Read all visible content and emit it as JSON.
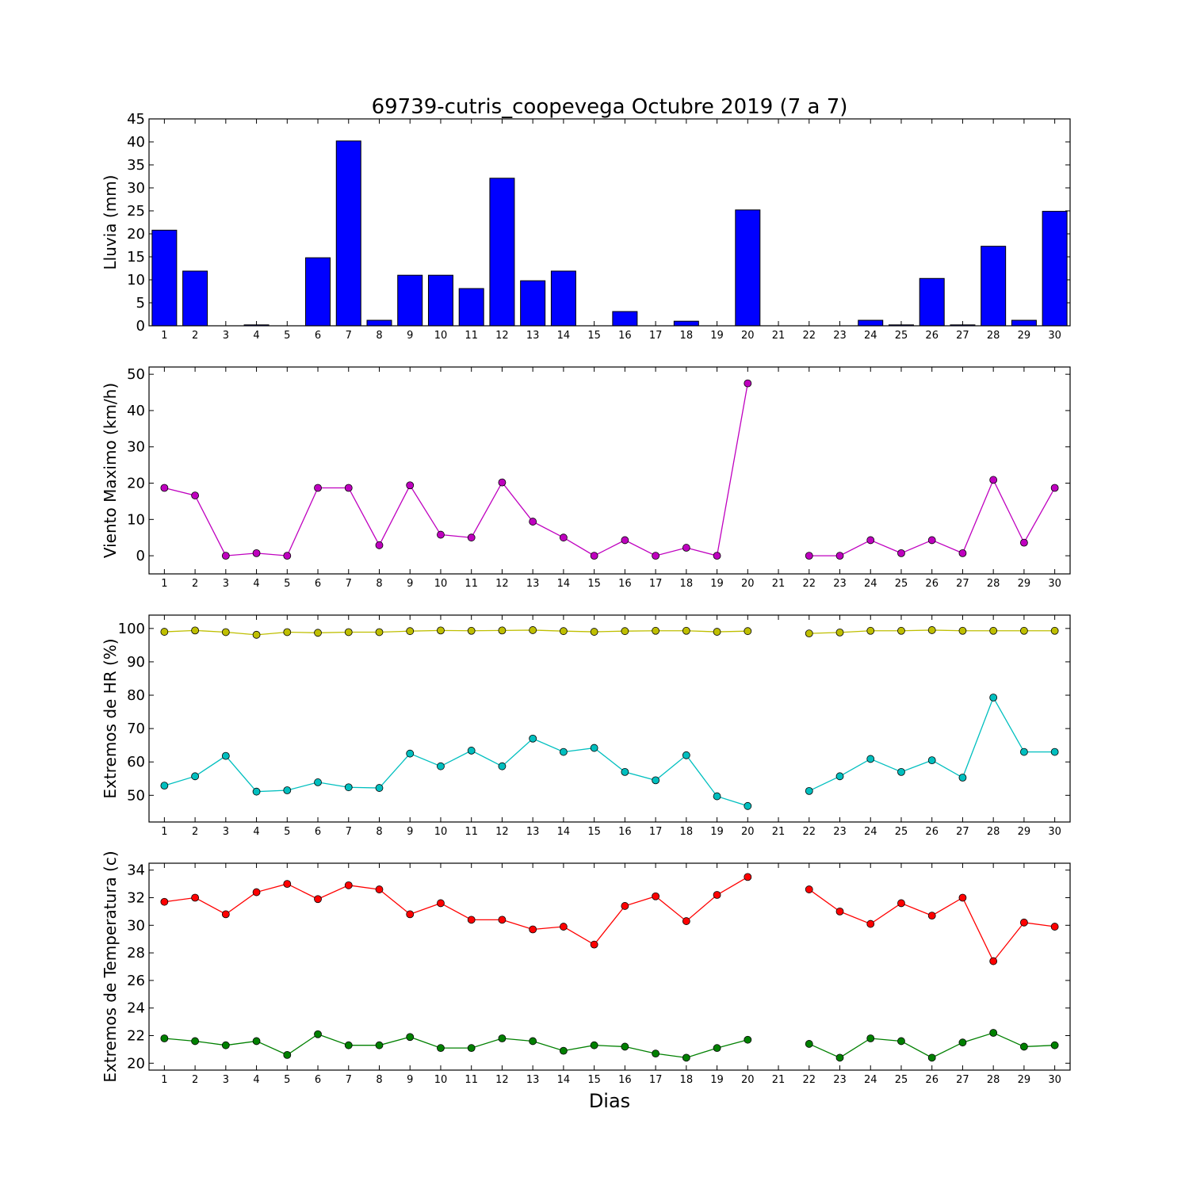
{
  "chart_data": [
    {
      "type": "bar",
      "title": "69739-cutris_coopevega Octubre 2019  (7 a 7)",
      "ylabel": "Lluvia (mm)",
      "xlabel": "",
      "x": [
        1,
        2,
        3,
        4,
        5,
        6,
        7,
        8,
        9,
        10,
        11,
        12,
        13,
        14,
        15,
        16,
        17,
        18,
        19,
        20,
        21,
        22,
        23,
        24,
        25,
        26,
        27,
        28,
        29,
        30
      ],
      "x_tick_labels": [
        "1",
        "2",
        "3",
        "4",
        "5",
        "6",
        "7",
        "8",
        "9",
        "10",
        "11",
        "12",
        "13",
        "14",
        "15",
        "16",
        "17",
        "18",
        "19",
        "20",
        "21",
        "22",
        "23",
        "24",
        "25",
        "26",
        "27",
        "28",
        "29",
        "30"
      ],
      "ylim": [
        0,
        45
      ],
      "y_ticks": [
        0,
        5,
        10,
        15,
        20,
        25,
        30,
        35,
        40,
        45
      ],
      "series": [
        {
          "color": "#0000ff",
          "values": [
            20.8,
            11.9,
            0,
            0.2,
            0,
            14.8,
            40.2,
            1.2,
            11.0,
            11.0,
            8.1,
            32.1,
            9.8,
            11.9,
            0,
            3.1,
            0,
            1.0,
            0,
            25.2,
            null,
            0,
            0,
            1.2,
            0.2,
            10.3,
            0.2,
            17.3,
            1.2,
            24.9
          ]
        }
      ]
    },
    {
      "type": "line",
      "ylabel": "Viento Maximo (km/h)",
      "x": [
        1,
        2,
        3,
        4,
        5,
        6,
        7,
        8,
        9,
        10,
        11,
        12,
        13,
        14,
        15,
        16,
        17,
        18,
        19,
        20,
        21,
        22,
        23,
        24,
        25,
        26,
        27,
        28,
        29,
        30
      ],
      "x_tick_labels": [
        "1",
        "2",
        "3",
        "4",
        "5",
        "6",
        "7",
        "8",
        "9",
        "10",
        "11",
        "12",
        "13",
        "14",
        "15",
        "16",
        "17",
        "18",
        "19",
        "20",
        "21",
        "22",
        "23",
        "24",
        "25",
        "26",
        "27",
        "28",
        "29",
        "30"
      ],
      "ylim": [
        -5,
        52
      ],
      "y_ticks": [
        0,
        10,
        20,
        30,
        40,
        50
      ],
      "series": [
        {
          "color": "#bf00bf",
          "values": [
            18.7,
            16.6,
            0,
            0.7,
            0,
            18.7,
            18.7,
            2.9,
            19.4,
            5.8,
            5.0,
            20.2,
            9.4,
            5.0,
            0,
            4.3,
            0,
            2.2,
            0,
            47.5,
            null,
            0,
            0,
            4.3,
            0.7,
            4.3,
            0.7,
            20.9,
            3.6,
            18.7
          ]
        }
      ]
    },
    {
      "type": "line",
      "ylabel": "Extremos de HR (%)",
      "x": [
        1,
        2,
        3,
        4,
        5,
        6,
        7,
        8,
        9,
        10,
        11,
        12,
        13,
        14,
        15,
        16,
        17,
        18,
        19,
        20,
        21,
        22,
        23,
        24,
        25,
        26,
        27,
        28,
        29,
        30
      ],
      "x_tick_labels": [
        "1",
        "2",
        "3",
        "4",
        "5",
        "6",
        "7",
        "8",
        "9",
        "10",
        "11",
        "12",
        "13",
        "14",
        "15",
        "16",
        "17",
        "18",
        "19",
        "20",
        "21",
        "22",
        "23",
        "24",
        "25",
        "26",
        "27",
        "28",
        "29",
        "30"
      ],
      "ylim": [
        42,
        104
      ],
      "y_ticks": [
        50,
        60,
        70,
        80,
        90,
        100
      ],
      "series": [
        {
          "color": "#bfbf00",
          "values": [
            99.0,
            99.4,
            98.9,
            98.1,
            98.9,
            98.7,
            98.9,
            98.9,
            99.2,
            99.4,
            99.3,
            99.4,
            99.5,
            99.2,
            99.0,
            99.2,
            99.3,
            99.3,
            99.0,
            99.2,
            null,
            98.5,
            98.8,
            99.3,
            99.3,
            99.5,
            99.3,
            99.3,
            99.3,
            99.3
          ]
        },
        {
          "color": "#00bfbf",
          "values": [
            52.9,
            55.7,
            61.8,
            51.1,
            51.5,
            53.9,
            52.4,
            52.2,
            62.5,
            58.7,
            63.4,
            58.7,
            67.0,
            63.0,
            64.2,
            57.0,
            54.5,
            62.0,
            49.7,
            46.8,
            null,
            51.3,
            55.7,
            60.9,
            57.0,
            60.5,
            55.3,
            79.3,
            63.0,
            63.0
          ]
        }
      ]
    },
    {
      "type": "line",
      "ylabel": "Extremos de Temperatura (c)",
      "xlabel": "Dias",
      "x": [
        1,
        2,
        3,
        4,
        5,
        6,
        7,
        8,
        9,
        10,
        11,
        12,
        13,
        14,
        15,
        16,
        17,
        18,
        19,
        20,
        21,
        22,
        23,
        24,
        25,
        26,
        27,
        28,
        29,
        30
      ],
      "x_tick_labels": [
        "1",
        "2",
        "3",
        "4",
        "5",
        "6",
        "7",
        "8",
        "9",
        "10",
        "11",
        "12",
        "13",
        "14",
        "15",
        "16",
        "17",
        "18",
        "19",
        "20",
        "21",
        "22",
        "23",
        "24",
        "25",
        "26",
        "27",
        "28",
        "29",
        "30"
      ],
      "ylim": [
        19.5,
        34.5
      ],
      "y_ticks": [
        20,
        22,
        24,
        26,
        28,
        30,
        32,
        34
      ],
      "series": [
        {
          "color": "#ff0000",
          "values": [
            31.7,
            32.0,
            30.8,
            32.4,
            33.0,
            31.9,
            32.9,
            32.6,
            30.8,
            31.6,
            30.4,
            30.4,
            29.7,
            29.9,
            28.6,
            31.4,
            32.1,
            30.3,
            32.2,
            33.5,
            null,
            32.6,
            31.0,
            30.1,
            31.6,
            30.7,
            32.0,
            27.4,
            30.2,
            29.9
          ]
        },
        {
          "color": "#008000",
          "values": [
            21.8,
            21.6,
            21.3,
            21.6,
            20.6,
            22.1,
            21.3,
            21.3,
            21.9,
            21.1,
            21.1,
            21.8,
            21.6,
            20.9,
            21.3,
            21.2,
            20.7,
            20.4,
            21.1,
            21.7,
            null,
            21.4,
            20.4,
            21.8,
            21.6,
            20.4,
            21.5,
            22.2,
            21.2,
            21.3
          ]
        }
      ]
    }
  ]
}
